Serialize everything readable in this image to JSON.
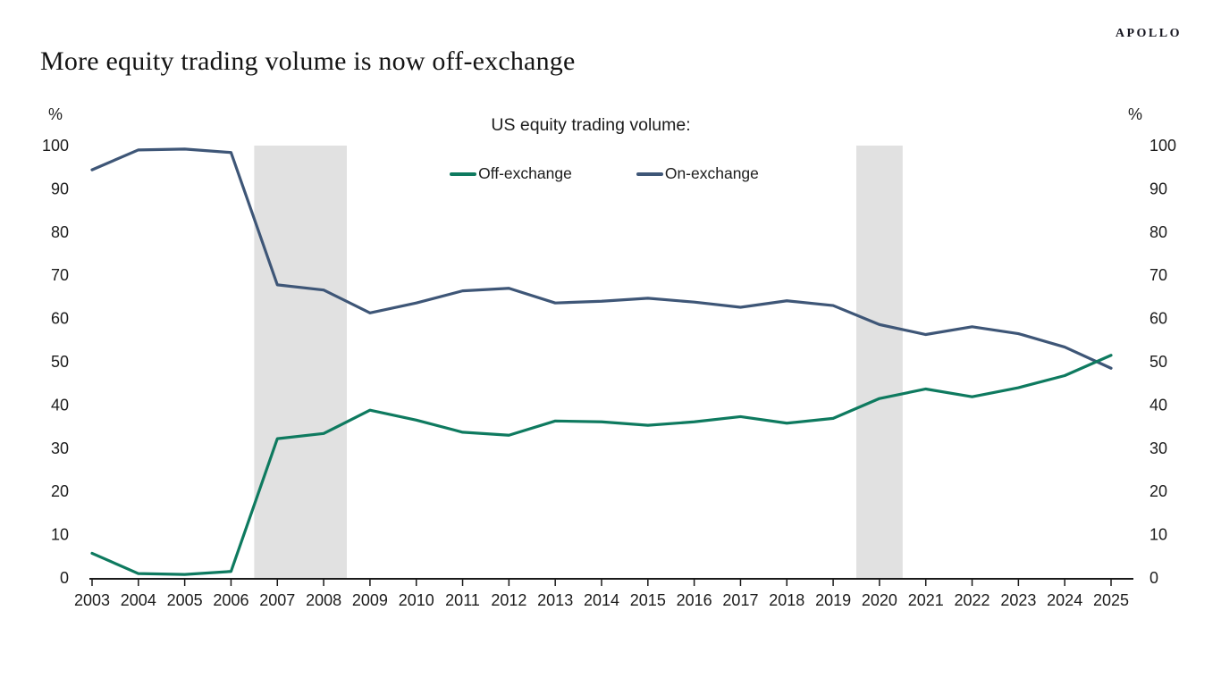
{
  "logo": "APOLLO",
  "page_title": "More equity trading volume is now off-exchange",
  "chart_data": {
    "type": "line",
    "title": "US equity trading volume:",
    "unit_label": "%",
    "x": [
      2003,
      2004,
      2005,
      2006,
      2007,
      2008,
      2009,
      2010,
      2011,
      2012,
      2013,
      2014,
      2015,
      2016,
      2017,
      2018,
      2019,
      2020,
      2021,
      2022,
      2023,
      2024,
      2025
    ],
    "series": [
      {
        "name": "Off-exchange",
        "color": "#0E7A5F",
        "values": [
          5.7,
          1.0,
          0.8,
          1.5,
          32.2,
          33.4,
          38.8,
          36.5,
          33.7,
          33.0,
          36.3,
          36.1,
          35.3,
          36.1,
          37.3,
          35.8,
          36.9,
          41.5,
          43.7,
          41.9,
          44.0,
          46.8,
          51.5
        ]
      },
      {
        "name": "On-exchange",
        "color": "#3E5677",
        "values": [
          94.4,
          99.0,
          99.2,
          98.4,
          67.8,
          66.6,
          61.3,
          63.6,
          66.4,
          67.0,
          63.6,
          64.0,
          64.7,
          63.8,
          62.6,
          64.1,
          63.0,
          58.6,
          56.3,
          58.1,
          56.5,
          53.4,
          48.5
        ]
      }
    ],
    "ylim": [
      0,
      100
    ],
    "ytick_step": 10,
    "grid": false,
    "legend_position": "top-center",
    "shaded_regions": [
      {
        "from": 2006.5,
        "to": 2008.5
      },
      {
        "from": 2019.5,
        "to": 2020.5
      }
    ],
    "shade_color": "#E1E1E1",
    "axis_color": "#1A1A1A"
  }
}
